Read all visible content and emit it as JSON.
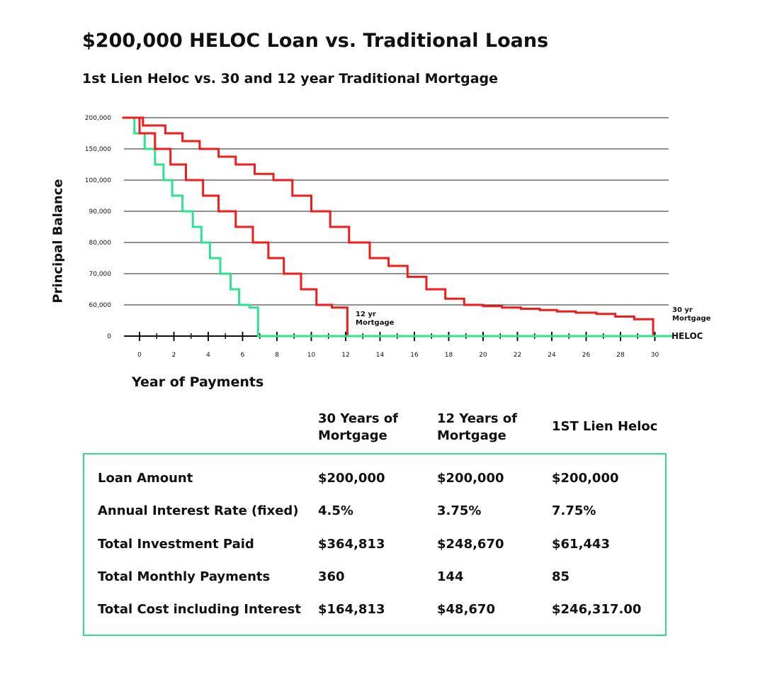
{
  "title": "$200,000 HELOC Loan vs. Traditional Loans",
  "subtitle": "1st Lien Heloc vs. 30 and 12 year Traditional Mortgage",
  "colors": {
    "mortgage": "#ee1c1c",
    "heloc": "#2ee28e",
    "grid": "#222222",
    "table_border": "#2edc8e"
  },
  "chart_data": {
    "type": "line",
    "ylabel": "Principal Balance",
    "xlabel": "Year of Payments",
    "x_ticks": [
      "0",
      "2",
      "4",
      "6",
      "8",
      "10",
      "12",
      "14",
      "16",
      "18",
      "20",
      "22",
      "24",
      "26",
      "28",
      "30"
    ],
    "y_ticks": [
      "0",
      "60,000",
      "70,000",
      "80,000",
      "90,000",
      "100,000",
      "150,000",
      "200,000"
    ],
    "grid": true,
    "series": [
      {
        "name": "30 yr Mortgage",
        "label": [
          "30 yr",
          "Mortgage"
        ],
        "points": [
          [
            -1,
            200000
          ],
          [
            0.2,
            200000
          ],
          [
            0.2,
            187500
          ],
          [
            1.5,
            187500
          ],
          [
            1.5,
            175000
          ],
          [
            2.5,
            175000
          ],
          [
            2.5,
            162500
          ],
          [
            3.5,
            162500
          ],
          [
            3.5,
            150000
          ],
          [
            4.6,
            150000
          ],
          [
            4.6,
            137500
          ],
          [
            5.6,
            137500
          ],
          [
            5.6,
            125000
          ],
          [
            6.7,
            125000
          ],
          [
            6.7,
            110000
          ],
          [
            7.8,
            110000
          ],
          [
            7.8,
            100000
          ],
          [
            8.9,
            100000
          ],
          [
            8.9,
            95000
          ],
          [
            10.0,
            95000
          ],
          [
            10.0,
            90000
          ],
          [
            11.1,
            90000
          ],
          [
            11.1,
            85000
          ],
          [
            12.2,
            85000
          ],
          [
            12.2,
            80000
          ],
          [
            13.4,
            80000
          ],
          [
            13.4,
            75000
          ],
          [
            14.5,
            75000
          ],
          [
            14.5,
            72500
          ],
          [
            15.6,
            72500
          ],
          [
            15.6,
            69000
          ],
          [
            16.7,
            69000
          ],
          [
            16.7,
            65000
          ],
          [
            17.8,
            65000
          ],
          [
            17.8,
            62000
          ],
          [
            18.9,
            62000
          ],
          [
            18.9,
            60000
          ],
          [
            20.0,
            60000
          ],
          [
            20.0,
            57500
          ],
          [
            21.1,
            57500
          ],
          [
            21.1,
            55000
          ],
          [
            22.2,
            55000
          ],
          [
            22.2,
            52500
          ],
          [
            23.3,
            52500
          ],
          [
            23.3,
            50000
          ],
          [
            24.3,
            50000
          ],
          [
            24.3,
            47500
          ],
          [
            25.4,
            47500
          ],
          [
            25.4,
            45000
          ],
          [
            26.6,
            45000
          ],
          [
            26.6,
            42500
          ],
          [
            27.7,
            42500
          ],
          [
            27.7,
            37500
          ],
          [
            28.8,
            37500
          ],
          [
            28.8,
            32500
          ],
          [
            29.9,
            32500
          ],
          [
            29.9,
            0
          ]
        ]
      },
      {
        "name": "12 yr Mortgage",
        "label": [
          "12 yr",
          "Mortgage"
        ],
        "points": [
          [
            -1,
            200000
          ],
          [
            0,
            200000
          ],
          [
            0,
            175000
          ],
          [
            0.9,
            175000
          ],
          [
            0.9,
            150000
          ],
          [
            1.8,
            150000
          ],
          [
            1.8,
            125000
          ],
          [
            2.7,
            125000
          ],
          [
            2.7,
            100000
          ],
          [
            3.7,
            100000
          ],
          [
            3.7,
            95000
          ],
          [
            4.6,
            95000
          ],
          [
            4.6,
            90000
          ],
          [
            5.6,
            90000
          ],
          [
            5.6,
            85000
          ],
          [
            6.6,
            85000
          ],
          [
            6.6,
            80000
          ],
          [
            7.5,
            80000
          ],
          [
            7.5,
            75000
          ],
          [
            8.4,
            75000
          ],
          [
            8.4,
            70000
          ],
          [
            9.4,
            70000
          ],
          [
            9.4,
            65000
          ],
          [
            10.3,
            65000
          ],
          [
            10.3,
            60000
          ],
          [
            11.2,
            60000
          ],
          [
            11.2,
            55000
          ],
          [
            12.1,
            55000
          ],
          [
            12.1,
            0
          ]
        ]
      },
      {
        "name": "HELOC",
        "label": [
          "HELOC"
        ],
        "points": [
          [
            -0.3,
            200000
          ],
          [
            -0.3,
            175000
          ],
          [
            0.3,
            175000
          ],
          [
            0.3,
            150000
          ],
          [
            0.9,
            150000
          ],
          [
            0.9,
            125000
          ],
          [
            1.4,
            125000
          ],
          [
            1.4,
            100000
          ],
          [
            1.9,
            100000
          ],
          [
            1.9,
            95000
          ],
          [
            2.5,
            95000
          ],
          [
            2.5,
            90000
          ],
          [
            3.1,
            90000
          ],
          [
            3.1,
            85000
          ],
          [
            3.6,
            85000
          ],
          [
            3.6,
            80000
          ],
          [
            4.1,
            80000
          ],
          [
            4.1,
            75000
          ],
          [
            4.7,
            75000
          ],
          [
            4.7,
            70000
          ],
          [
            5.3,
            70000
          ],
          [
            5.3,
            65000
          ],
          [
            5.8,
            65000
          ],
          [
            5.8,
            60000
          ],
          [
            6.4,
            60000
          ],
          [
            6.4,
            55000
          ],
          [
            6.9,
            55000
          ],
          [
            6.9,
            0
          ],
          [
            31,
            0
          ]
        ]
      }
    ]
  },
  "table": {
    "columns": [
      {
        "line1": "30 Years of",
        "line2": "Mortgage"
      },
      {
        "line1": "12 Years of",
        "line2": "Mortgage"
      },
      {
        "line1": "1ST Lien Heloc",
        "line2": ""
      }
    ],
    "rows": [
      {
        "label": "Loan Amount",
        "values": [
          "$200,000",
          "$200,000",
          "$200,000"
        ]
      },
      {
        "label": "Annual Interest Rate (fixed)",
        "values": [
          "4.5%",
          "3.75%",
          "7.75%"
        ]
      },
      {
        "label": "Total Investment Paid",
        "values": [
          "$364,813",
          "$248,670",
          "$61,443"
        ]
      },
      {
        "label": "Total Monthly Payments",
        "values": [
          "360",
          "144",
          "85"
        ]
      },
      {
        "label": "Total Cost including Interest",
        "values": [
          "$164,813",
          "$48,670",
          "$246,317.00"
        ]
      }
    ]
  }
}
